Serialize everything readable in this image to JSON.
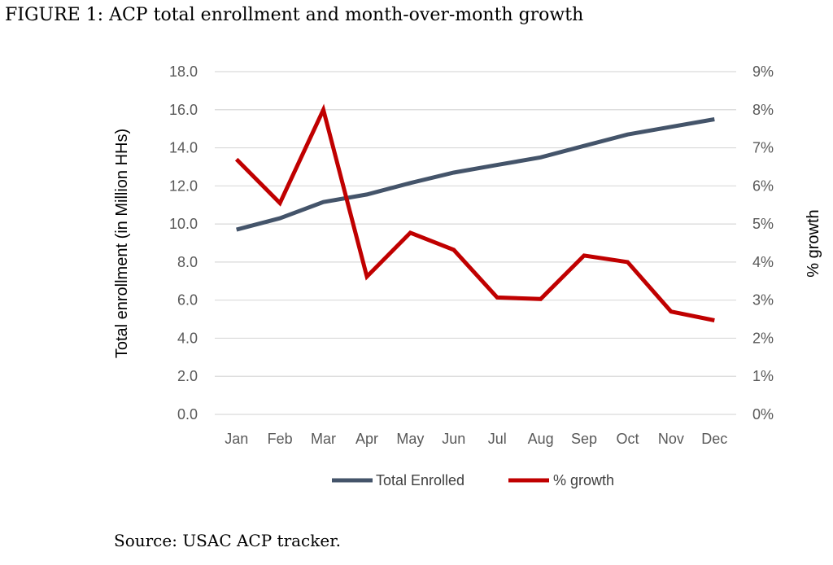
{
  "figure": {
    "title": "FIGURE 1: ACP total enrollment and month-over-month growth",
    "source": "Source: USAC ACP tracker."
  },
  "chart_data": {
    "type": "line",
    "categories": [
      "Jan",
      "Feb",
      "Mar",
      "Apr",
      "May",
      "Jun",
      "Jul",
      "Aug",
      "Sep",
      "Oct",
      "Nov",
      "Dec"
    ],
    "ylabel": "Total enrollment (in Million HHs)",
    "ylim": [
      0,
      18
    ],
    "yticks": [
      "0.0",
      "2.0",
      "4.0",
      "6.0",
      "8.0",
      "10.0",
      "12.0",
      "14.0",
      "16.0",
      "18.0"
    ],
    "y2label": "% growth",
    "y2lim": [
      0,
      9
    ],
    "y2ticks": [
      "0%",
      "1%",
      "2%",
      "3%",
      "4%",
      "5%",
      "6%",
      "7%",
      "8%",
      "9%"
    ],
    "grid": true,
    "legend_position": "bottom",
    "series": [
      {
        "name": "Total Enrolled",
        "axis": "left",
        "color": "#44546a",
        "values": [
          9.7,
          10.3,
          11.15,
          11.55,
          12.15,
          12.7,
          13.1,
          13.5,
          14.1,
          14.7,
          15.1,
          15.5
        ]
      },
      {
        "name": "% growth",
        "axis": "right",
        "color": "#c00000",
        "values": [
          6.7,
          5.55,
          8.0,
          3.62,
          4.77,
          4.32,
          3.07,
          3.03,
          4.17,
          4.0,
          2.7,
          2.47
        ]
      }
    ]
  }
}
